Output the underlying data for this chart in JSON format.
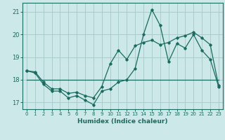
{
  "xlabel": "Humidex (Indice chaleur)",
  "bg_color": "#cce8e8",
  "line_color": "#1a6b60",
  "grid_color": "#aacccc",
  "xlim": [
    -0.5,
    23.5
  ],
  "ylim": [
    16.7,
    21.4
  ],
  "yticks": [
    17,
    18,
    19,
    20,
    21
  ],
  "xticks": [
    0,
    1,
    2,
    3,
    4,
    5,
    6,
    7,
    8,
    9,
    10,
    11,
    12,
    13,
    14,
    15,
    16,
    17,
    18,
    19,
    20,
    21,
    22,
    23
  ],
  "line1_x": [
    0,
    1,
    2,
    3,
    4,
    5,
    6,
    7,
    8,
    9,
    10,
    11,
    12,
    13,
    14,
    15,
    16,
    17,
    18,
    19,
    20,
    21,
    22,
    23
  ],
  "line1_y": [
    18.4,
    18.3,
    17.8,
    17.5,
    17.5,
    17.2,
    17.3,
    17.1,
    16.9,
    17.5,
    17.6,
    17.9,
    18.0,
    18.5,
    20.0,
    21.1,
    20.4,
    18.8,
    19.6,
    19.4,
    20.0,
    19.3,
    18.9,
    17.7
  ],
  "line2_x": [
    0,
    1,
    2,
    3,
    4,
    5,
    6,
    7,
    8,
    9,
    10,
    11,
    12,
    13,
    14,
    15,
    16,
    17,
    18,
    19,
    20,
    21,
    22,
    23
  ],
  "line2_y": [
    18.4,
    18.35,
    17.9,
    17.6,
    17.6,
    17.4,
    17.45,
    17.3,
    17.2,
    17.7,
    18.7,
    19.3,
    18.9,
    19.5,
    19.65,
    19.75,
    19.55,
    19.65,
    19.85,
    19.95,
    20.1,
    19.85,
    19.55,
    17.75
  ],
  "line3_x": [
    0,
    23
  ],
  "line3_y": [
    18.0,
    18.0
  ]
}
